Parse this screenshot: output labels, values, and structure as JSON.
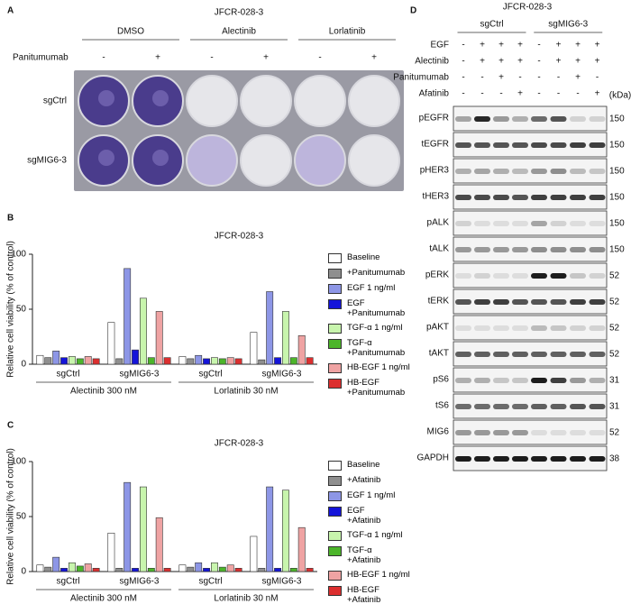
{
  "panel_a": {
    "label": "A",
    "title": "JFCR-028-3",
    "columns": [
      "DMSO",
      "Alectinib",
      "Lorlatinib"
    ],
    "treatment": "Panitumumab",
    "signs": [
      "-",
      "+",
      "-",
      "+",
      "-",
      "+"
    ],
    "rows": [
      "sgCtrl",
      "sgMIG6-3"
    ]
  },
  "chart_data": [
    {
      "type": "bar",
      "label": "B",
      "title": "JFCR-028-3",
      "ylabel": "Relative cell viability (% of control)",
      "categories": [
        "sgCtrl",
        "sgMIG6-3",
        "sgCtrl",
        "sgMIG6-3"
      ],
      "group_labels": [
        "Alectinib 300 nM",
        "Lorlatinib 30 nM"
      ],
      "ylim": [
        0,
        100
      ],
      "yticks": [
        0,
        50,
        100
      ],
      "series": [
        {
          "name": "Baseline",
          "color": "#ffffff",
          "values": [
            8,
            38,
            7,
            29
          ]
        },
        {
          "name": "+Panitumumab",
          "color": "#8f8f8f",
          "values": [
            6,
            5,
            5,
            4
          ]
        },
        {
          "name": "EGF 1 ng/ml",
          "color": "#8d96e6",
          "values": [
            12,
            87,
            8,
            66
          ]
        },
        {
          "name": "EGF\n+Panitumumab",
          "color": "#1414d9",
          "values": [
            6,
            13,
            5,
            6
          ]
        },
        {
          "name": "TGF-α 1 ng/ml",
          "color": "#c8f5ad",
          "values": [
            7,
            60,
            6,
            48
          ]
        },
        {
          "name": "TGF-α\n+Panitumumab",
          "color": "#4cb52a",
          "values": [
            5,
            6,
            5,
            6
          ]
        },
        {
          "name": "HB-EGF 1 ng/ml",
          "color": "#efa3a3",
          "values": [
            7,
            48,
            6,
            26
          ]
        },
        {
          "name": "HB-EGF\n+Panitumumab",
          "color": "#dc2f2f",
          "values": [
            5,
            6,
            5,
            6
          ]
        }
      ]
    },
    {
      "type": "bar",
      "label": "C",
      "title": "JFCR-028-3",
      "ylabel": "Relative cell viability (% of control)",
      "categories": [
        "sgCtrl",
        "sgMIG6-3",
        "sgCtrl",
        "sgMIG6-3"
      ],
      "group_labels": [
        "Alectinib 300 nM",
        "Lorlatinib 30 nM"
      ],
      "ylim": [
        0,
        100
      ],
      "yticks": [
        0,
        50,
        100
      ],
      "series": [
        {
          "name": "Baseline",
          "color": "#ffffff",
          "values": [
            6,
            35,
            6,
            32
          ]
        },
        {
          "name": "+Afatinib",
          "color": "#8f8f8f",
          "values": [
            4,
            3,
            4,
            3
          ]
        },
        {
          "name": "EGF 1 ng/ml",
          "color": "#8d96e6",
          "values": [
            13,
            81,
            8,
            77
          ]
        },
        {
          "name": "EGF\n+Afatinib",
          "color": "#1414d9",
          "values": [
            3,
            3,
            3,
            3
          ]
        },
        {
          "name": "TGF-α 1 ng/ml",
          "color": "#c8f5ad",
          "values": [
            8,
            77,
            8,
            74
          ]
        },
        {
          "name": "TGF-α\n+Afatinib",
          "color": "#4cb52a",
          "values": [
            5,
            3,
            4,
            3
          ]
        },
        {
          "name": "HB-EGF 1 ng/ml",
          "color": "#efa3a3",
          "values": [
            7,
            49,
            6,
            40
          ]
        },
        {
          "name": "HB-EGF\n+Afatinib",
          "color": "#dc2f2f",
          "values": [
            3,
            3,
            3,
            3
          ]
        }
      ]
    }
  ],
  "panel_d": {
    "label": "D",
    "title": "JFCR-028-3",
    "groups": [
      "sgCtrl",
      "sgMIG6-3"
    ],
    "treatments": [
      {
        "name": "EGF",
        "signs": [
          "-",
          "+",
          "+",
          "+",
          "-",
          "+",
          "+",
          "+"
        ]
      },
      {
        "name": "Alectinib",
        "signs": [
          "-",
          "+",
          "+",
          "+",
          "-",
          "+",
          "+",
          "+"
        ]
      },
      {
        "name": "Panitumumab",
        "signs": [
          "-",
          "-",
          "+",
          "-",
          "-",
          "-",
          "+",
          "-"
        ]
      },
      {
        "name": "Afatinib",
        "signs": [
          "-",
          "-",
          "-",
          "+",
          "-",
          "-",
          "-",
          "+"
        ]
      }
    ],
    "unit": "(kDa)",
    "blots": [
      {
        "name": "pEGFR",
        "kda": 150
      },
      {
        "name": "tEGFR",
        "kda": 150
      },
      {
        "name": "pHER3",
        "kda": 150
      },
      {
        "name": "tHER3",
        "kda": 150
      },
      {
        "name": "pALK",
        "kda": 150
      },
      {
        "name": "tALK",
        "kda": 150
      },
      {
        "name": "pERK",
        "kda": 52
      },
      {
        "name": "tERK",
        "kda": 52
      },
      {
        "name": "pAKT",
        "kda": 52
      },
      {
        "name": "tAKT",
        "kda": 52
      },
      {
        "name": "pS6",
        "kda": 31
      },
      {
        "name": "tS6",
        "kda": 31
      },
      {
        "name": "MIG6",
        "kda": 52
      },
      {
        "name": "GAPDH",
        "kda": 38
      }
    ]
  }
}
